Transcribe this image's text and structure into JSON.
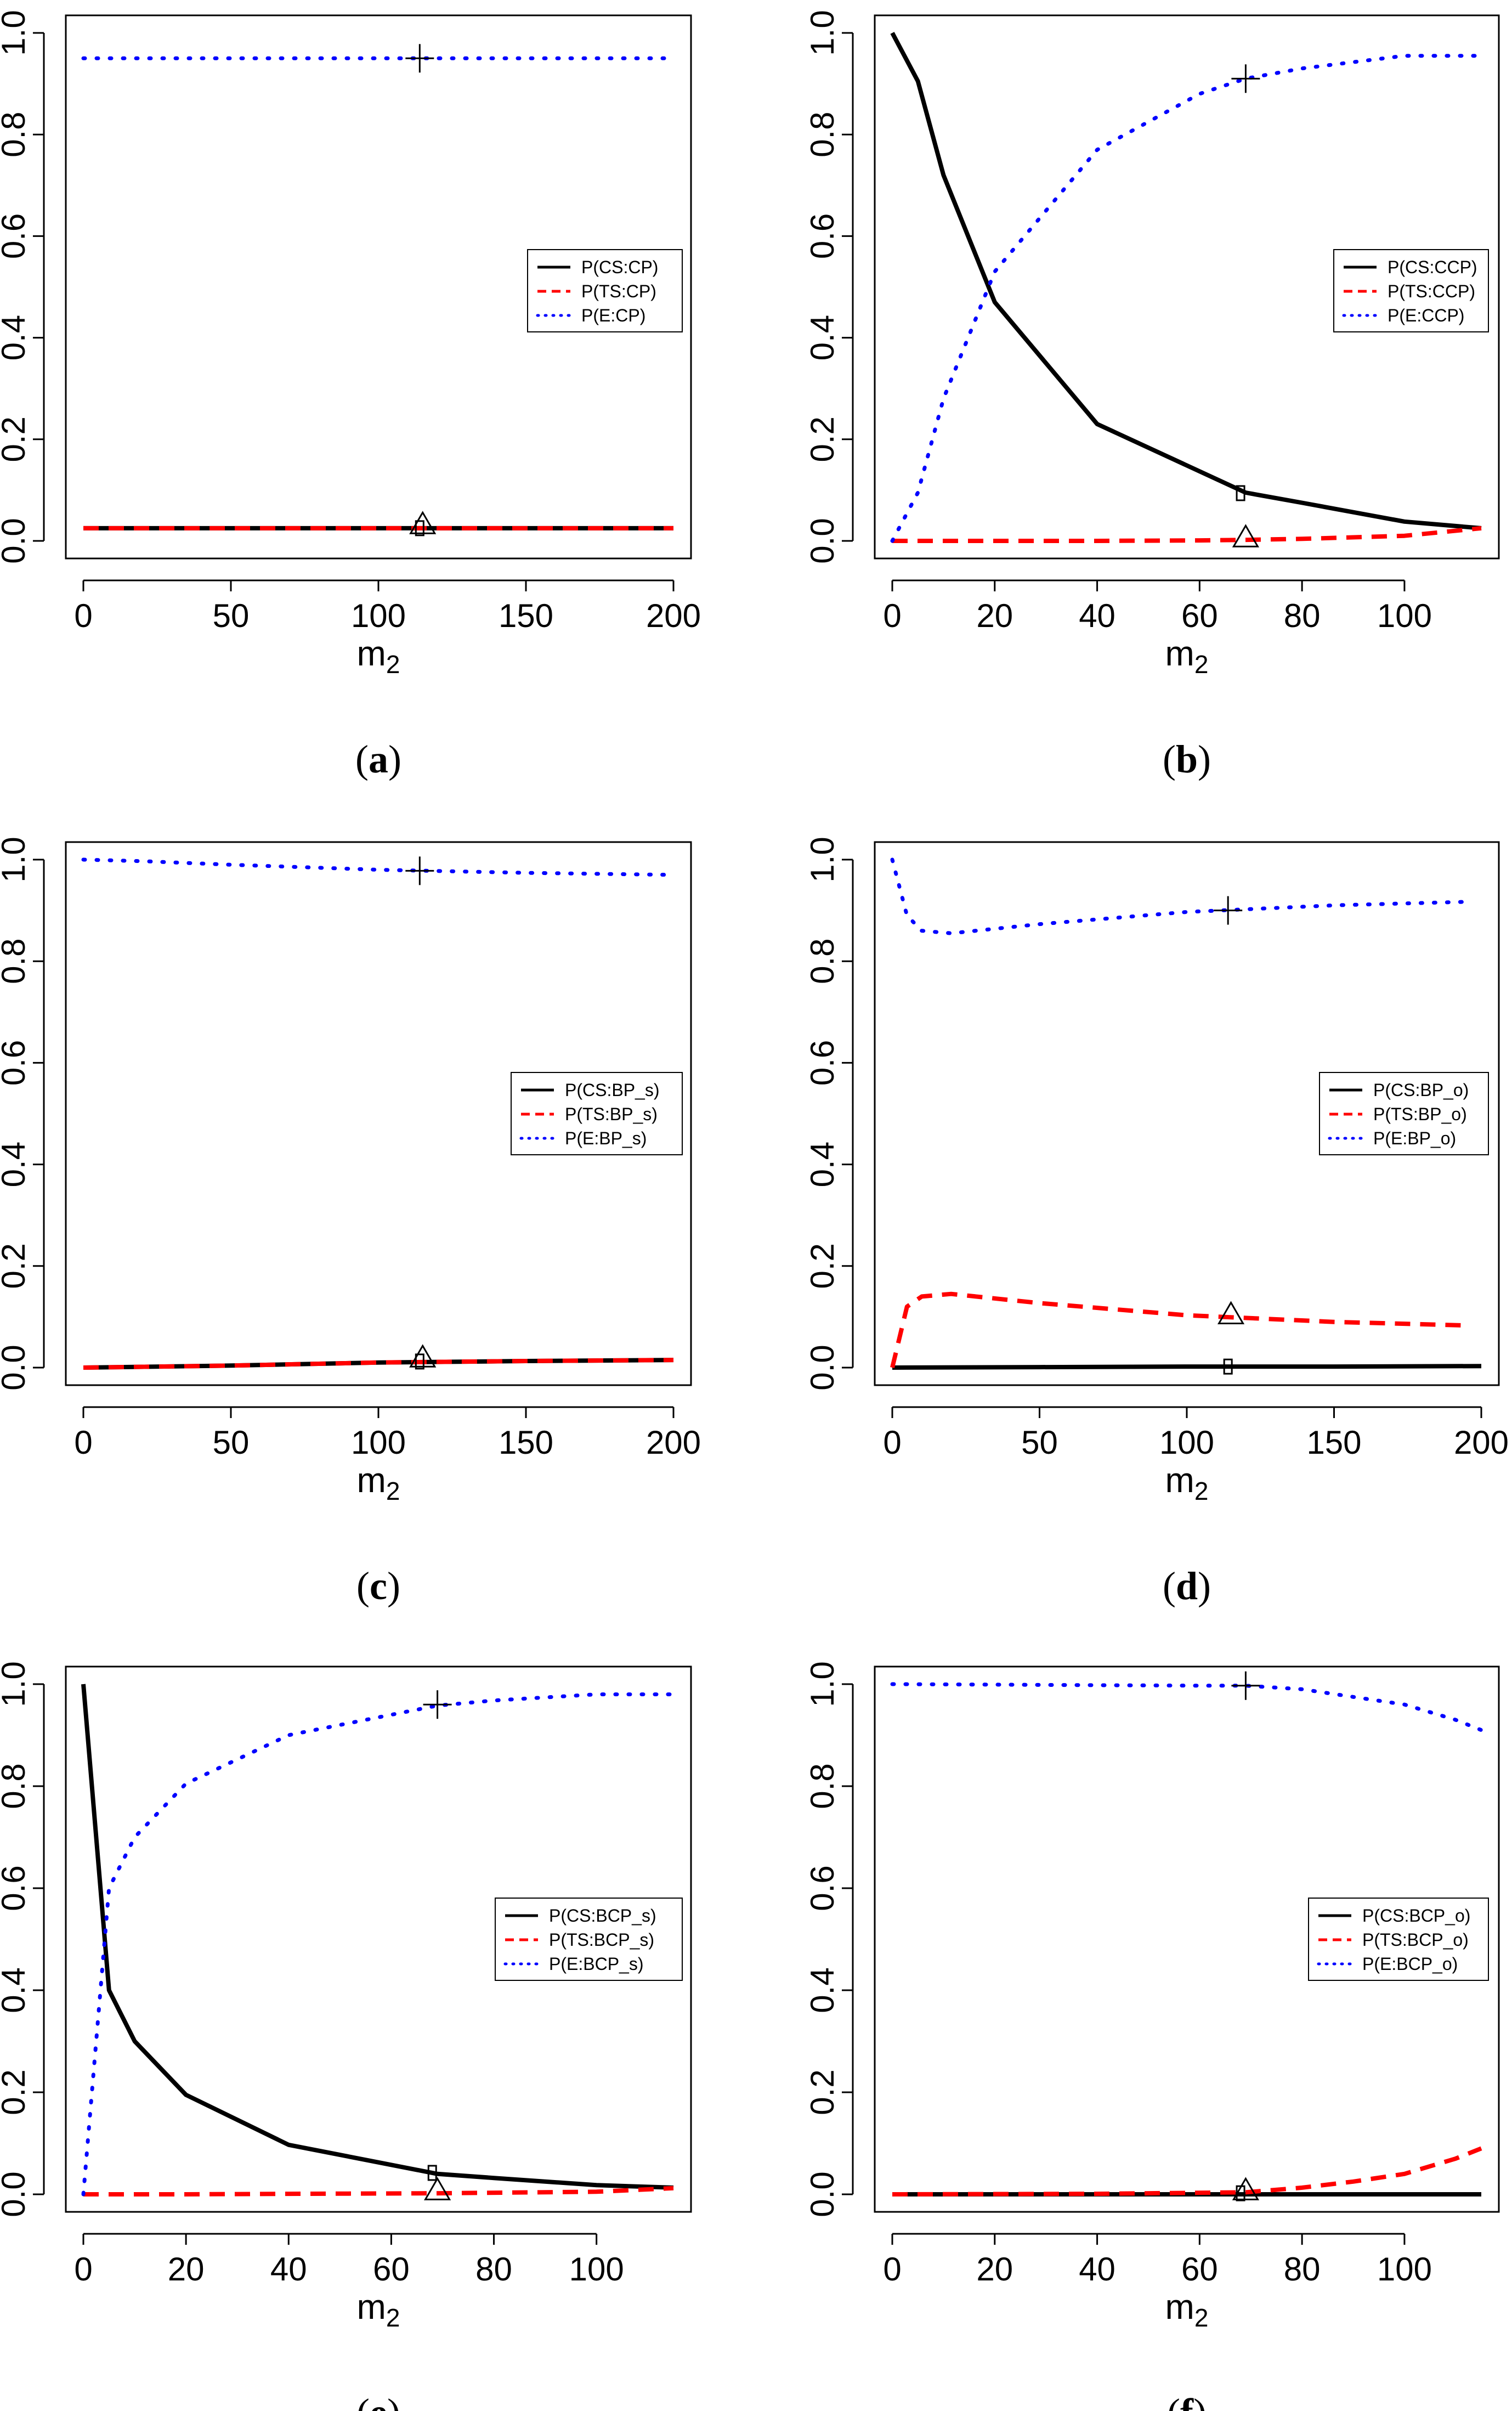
{
  "figure": {
    "colors": {
      "cs": "#000000",
      "ts": "#ff0000",
      "e": "#0000ff"
    },
    "marker_names": {
      "cs": "square",
      "ts": "triangle",
      "e": "plus"
    }
  },
  "chart_data": [
    {
      "type": "line",
      "caption": "a",
      "xlabel": "m",
      "xlabel_sub": "2",
      "xlim": [
        0,
        200
      ],
      "ylim": [
        0,
        1
      ],
      "xticks": [
        "0",
        "50",
        "100",
        "150",
        "200"
      ],
      "yticks": [
        "0.0",
        "0.2",
        "0.4",
        "0.6",
        "0.8",
        "1.0"
      ],
      "legend": [
        "P(CS:CP)",
        "P(TS:CP)",
        "P(E:CP)"
      ],
      "legend_position": "middle-right",
      "series": [
        {
          "name": "P(CS:CP)",
          "style": "solid",
          "x": [
            0,
            200
          ],
          "y": [
            0.025,
            0.025
          ],
          "marker": [
            114,
            0.025
          ]
        },
        {
          "name": "P(TS:CP)",
          "style": "dashed",
          "x": [
            0,
            200
          ],
          "y": [
            0.025,
            0.025
          ],
          "marker": [
            115,
            0.03
          ]
        },
        {
          "name": "P(E:CP)",
          "style": "dotted",
          "x": [
            0,
            200
          ],
          "y": [
            0.95,
            0.95
          ],
          "marker": [
            114,
            0.95
          ]
        }
      ]
    },
    {
      "type": "line",
      "caption": "b",
      "xlabel": "m",
      "xlabel_sub": "2",
      "xlim": [
        0,
        115
      ],
      "ylim": [
        0,
        1
      ],
      "xticks": [
        "0",
        "20",
        "40",
        "60",
        "80",
        "100"
      ],
      "yticks": [
        "0.0",
        "0.2",
        "0.4",
        "0.6",
        "0.8",
        "1.0"
      ],
      "legend": [
        "P(CS:CCP)",
        "P(TS:CCP)",
        "P(E:CCP)"
      ],
      "legend_position": "upper-right",
      "series": [
        {
          "name": "P(CS:CCP)",
          "style": "solid",
          "x": [
            0,
            5,
            10,
            20,
            40,
            69,
            80,
            100,
            115
          ],
          "y": [
            1.0,
            0.905,
            0.72,
            0.47,
            0.23,
            0.095,
            0.075,
            0.038,
            0.025
          ],
          "marker": [
            68,
            0.094
          ]
        },
        {
          "name": "P(TS:CCP)",
          "style": "dashed",
          "x": [
            0,
            20,
            40,
            60,
            69,
            80,
            100,
            115
          ],
          "y": [
            0,
            0,
            0,
            0.001,
            0.002,
            0.004,
            0.01,
            0.025
          ],
          "marker": [
            69,
            0.004
          ]
        },
        {
          "name": "P(E:CCP)",
          "style": "dotted",
          "x": [
            0,
            5,
            10,
            20,
            40,
            60,
            69,
            80,
            100,
            115
          ],
          "y": [
            0,
            0.095,
            0.28,
            0.53,
            0.77,
            0.88,
            0.91,
            0.93,
            0.955,
            0.955
          ],
          "marker": [
            69,
            0.91
          ]
        }
      ]
    },
    {
      "type": "line",
      "caption": "c",
      "xlabel": "m",
      "xlabel_sub": "2",
      "xlim": [
        0,
        200
      ],
      "ylim": [
        0,
        1
      ],
      "xticks": [
        "0",
        "50",
        "100",
        "150",
        "200"
      ],
      "yticks": [
        "0.0",
        "0.2",
        "0.4",
        "0.6",
        "0.8",
        "1.0"
      ],
      "legend": [
        "P(CS:BP_s)",
        "P(TS:BP_s)",
        "P(E:BP_s)"
      ],
      "legend_position": "middle-right",
      "series": [
        {
          "name": "P(CS:BP_s)",
          "style": "solid",
          "x": [
            0,
            50,
            100,
            150,
            200
          ],
          "y": [
            0,
            0.004,
            0.01,
            0.013,
            0.015
          ],
          "marker": [
            114,
            0.012
          ]
        },
        {
          "name": "P(TS:BP_s)",
          "style": "dashed",
          "x": [
            0,
            50,
            100,
            150,
            200
          ],
          "y": [
            0,
            0.004,
            0.01,
            0.013,
            0.015
          ],
          "marker": [
            115,
            0.017
          ]
        },
        {
          "name": "P(E:BP_s)",
          "style": "dotted",
          "x": [
            0,
            20,
            50,
            100,
            150,
            200
          ],
          "y": [
            1.0,
            0.997,
            0.99,
            0.98,
            0.974,
            0.97
          ],
          "marker": [
            114,
            0.978
          ]
        }
      ]
    },
    {
      "type": "line",
      "caption": "d",
      "xlabel": "m",
      "xlabel_sub": "2",
      "xlim": [
        0,
        200
      ],
      "ylim": [
        0,
        1
      ],
      "xticks": [
        "0",
        "50",
        "100",
        "150",
        "200"
      ],
      "yticks": [
        "0.0",
        "0.2",
        "0.4",
        "0.6",
        "0.8",
        "1.0"
      ],
      "legend": [
        "P(CS:BP_o)",
        "P(TS:BP_o)",
        "P(E:BP_o)"
      ],
      "legend_position": "middle-right",
      "series": [
        {
          "name": "P(CS:BP_o)",
          "style": "solid",
          "x": [
            0,
            50,
            100,
            150,
            200
          ],
          "y": [
            0,
            0.001,
            0.002,
            0.002,
            0.003
          ],
          "marker": [
            114,
            0.002
          ]
        },
        {
          "name": "P(TS:BP_o)",
          "style": "dashed",
          "x": [
            0,
            5,
            10,
            20,
            50,
            100,
            150,
            195
          ],
          "y": [
            0,
            0.12,
            0.14,
            0.145,
            0.127,
            0.103,
            0.09,
            0.083
          ],
          "marker": [
            115,
            0.102
          ]
        },
        {
          "name": "P(E:BP_o)",
          "style": "dotted",
          "x": [
            0,
            5,
            10,
            20,
            50,
            100,
            150,
            195
          ],
          "y": [
            1.0,
            0.89,
            0.86,
            0.855,
            0.873,
            0.897,
            0.91,
            0.917
          ],
          "marker": [
            114,
            0.9
          ]
        }
      ]
    },
    {
      "type": "line",
      "caption": "e",
      "xlabel": "m",
      "xlabel_sub": "2",
      "xlim": [
        0,
        115
      ],
      "ylim": [
        0,
        1
      ],
      "xticks": [
        "0",
        "20",
        "40",
        "60",
        "80",
        "100"
      ],
      "yticks": [
        "0.0",
        "0.2",
        "0.4",
        "0.6",
        "0.8",
        "1.0"
      ],
      "legend": [
        "P(CS:BCP_s)",
        "P(TS:BCP_s)",
        "P(E:BCP_s)"
      ],
      "legend_position": "middle-right",
      "series": [
        {
          "name": "P(CS:BCP_s)",
          "style": "solid",
          "x": [
            0,
            5,
            10,
            20,
            40,
            69,
            80,
            100,
            115
          ],
          "y": [
            1.0,
            0.4,
            0.3,
            0.195,
            0.097,
            0.04,
            0.032,
            0.018,
            0.013
          ],
          "marker": [
            68,
            0.042
          ]
        },
        {
          "name": "P(TS:BCP_s)",
          "style": "dashed",
          "x": [
            0,
            20,
            40,
            69,
            100,
            115
          ],
          "y": [
            0,
            0,
            0.001,
            0.002,
            0.005,
            0.012
          ],
          "marker": [
            69,
            0.005
          ]
        },
        {
          "name": "P(E:BCP_s)",
          "style": "dotted",
          "x": [
            0,
            5,
            10,
            20,
            40,
            69,
            80,
            100,
            115
          ],
          "y": [
            0,
            0.6,
            0.7,
            0.805,
            0.9,
            0.958,
            0.968,
            0.98,
            0.98
          ],
          "marker": [
            69,
            0.96
          ]
        }
      ]
    },
    {
      "type": "line",
      "caption": "f",
      "xlabel": "m",
      "xlabel_sub": "2",
      "xlim": [
        0,
        115
      ],
      "ylim": [
        0,
        1
      ],
      "xticks": [
        "0",
        "20",
        "40",
        "60",
        "80",
        "100"
      ],
      "yticks": [
        "0.0",
        "0.2",
        "0.4",
        "0.6",
        "0.8",
        "1.0"
      ],
      "legend": [
        "P(CS:BCP_o)",
        "P(TS:BCP_o)",
        "P(E:BCP_o)"
      ],
      "legend_position": "middle-right",
      "series": [
        {
          "name": "P(CS:BCP_o)",
          "style": "solid",
          "x": [
            0,
            115
          ],
          "y": [
            0,
            0
          ],
          "marker": [
            68,
            0.002
          ]
        },
        {
          "name": "P(TS:BCP_o)",
          "style": "dashed",
          "x": [
            0,
            40,
            69,
            80,
            90,
            100,
            110,
            115
          ],
          "y": [
            0,
            0.001,
            0.004,
            0.013,
            0.025,
            0.04,
            0.07,
            0.09
          ],
          "marker": [
            69,
            0.005
          ]
        },
        {
          "name": "P(E:BCP_o)",
          "style": "dotted",
          "x": [
            0,
            20,
            40,
            60,
            69,
            80,
            90,
            100,
            110,
            115
          ],
          "y": [
            1.0,
            0.999,
            0.998,
            0.997,
            0.997,
            0.99,
            0.975,
            0.96,
            0.93,
            0.91
          ],
          "marker": [
            69,
            0.997
          ]
        }
      ]
    }
  ]
}
